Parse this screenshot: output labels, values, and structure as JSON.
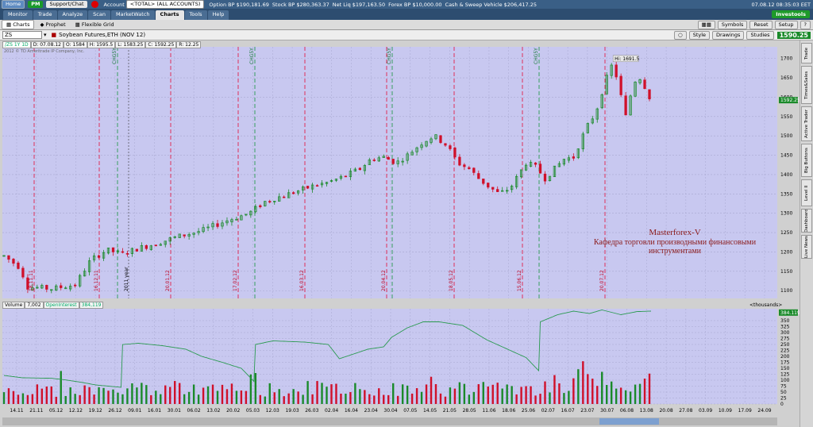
{
  "topbar": {
    "home": "Home",
    "pm": "PM",
    "support": "Support/Chat",
    "account_label": "Account",
    "account_value": "<TOTAL> (ALL ACCOUNTS)",
    "stats": [
      {
        "k": "Option BP",
        "v": "$190,181.69"
      },
      {
        "k": "Stock BP",
        "v": "$280,363.37"
      },
      {
        "k": "Net Liq",
        "v": "$197,163.50"
      },
      {
        "k": "Forex BP",
        "v": "$10,000.00"
      },
      {
        "k": "Cash & Sweep Vehicle",
        "v": "$206,417.25"
      }
    ],
    "time": "07.08.12 08:35:03 EET"
  },
  "nav": {
    "tabs": [
      "Monitor",
      "Trade",
      "Analyze",
      "Scan",
      "MarketWatch",
      "Charts",
      "Tools",
      "Help"
    ],
    "active": "Charts",
    "logo": "Investools"
  },
  "subtabs": {
    "items": [
      "Charts",
      "Prophet",
      "Flexible Grid"
    ],
    "right": [
      "Symbols",
      "Reset",
      "Setup"
    ]
  },
  "symbar": {
    "symbol": "ZS",
    "description": "Soybean Futures,ETH (NOV 12)",
    "last": "1590.25",
    "buttons": [
      "Style",
      "Drawings",
      "Studies"
    ]
  },
  "price_panel": {
    "info": [
      "/ZS 1Y 1D",
      "D: 07.08.12",
      "O: 1584",
      "H: 1595.5",
      "L: 1583.25",
      "C: 1592.25",
      "R: 12.25"
    ],
    "copyright": "2012 © TD Ameritrade IP Company, Inc.",
    "high_label": "Hi: 1691.5",
    "last_label": "1592.25"
  },
  "volume_panel": {
    "labels": [
      "Volume",
      "7,002",
      "OpenInterest",
      "384,119"
    ],
    "units": "<thousands>",
    "oi_label": "384.119"
  },
  "watermark": {
    "line1": "Masterforex-V",
    "line2": "Кафедра торговли производными финансовыми",
    "line3": "инструментами"
  },
  "right_tabs": [
    "Trade",
    "Times&Sales",
    "Active Trader",
    "Big Buttons",
    "Level II",
    "Dashboard",
    "Live News"
  ],
  "chart_data": {
    "type": "candlestick",
    "price_axis": {
      "min": 1080,
      "max": 1730,
      "ticks": [
        1100,
        1150,
        1200,
        1250,
        1300,
        1350,
        1400,
        1450,
        1500,
        1550,
        1600,
        1650,
        1700
      ]
    },
    "volume_axis": {
      "min": 0,
      "max": 400,
      "ticks": [
        0,
        25,
        50,
        75,
        100,
        125,
        150,
        175,
        200,
        225,
        250,
        275,
        300,
        325,
        350
      ]
    },
    "x_labels": [
      "14.11",
      "21.11",
      "05.12",
      "12.12",
      "19.12",
      "26.12",
      "09.01",
      "16.01",
      "30.01",
      "06.02",
      "13.02",
      "20.02",
      "05.03",
      "12.03",
      "19.03",
      "26.03",
      "02.04",
      "16.04",
      "23.04",
      "30.04",
      "07.05",
      "14.05",
      "21.05",
      "28.05",
      "11.06",
      "18.06",
      "25.06",
      "02.07",
      "16.07",
      "23.07",
      "30.07",
      "06.08",
      "13.08",
      "20.08",
      "27.08",
      "03.09",
      "10.09",
      "17.09",
      "24.09"
    ],
    "red_markers": [
      "18.11.11",
      "16.12.11",
      "20.01.12",
      "17.02.12",
      "16.03.12",
      "20.04.12",
      "18.05.12",
      "15.06.12",
      "20.07.12"
    ],
    "green_markers": [
      "CHG5Y",
      "CHG5Y",
      "CHG5Y",
      "CHG5Y"
    ],
    "year_marker": "2011 year",
    "anchors": [
      [
        0,
        1190
      ],
      [
        10,
        1160
      ],
      [
        15,
        1110
      ],
      [
        30,
        1105
      ],
      [
        45,
        1115
      ],
      [
        55,
        1180
      ],
      [
        65,
        1205
      ],
      [
        75,
        1195
      ],
      [
        85,
        1210
      ],
      [
        95,
        1220
      ],
      [
        110,
        1240
      ],
      [
        125,
        1255
      ],
      [
        140,
        1280
      ],
      [
        155,
        1300
      ],
      [
        165,
        1330
      ],
      [
        180,
        1350
      ],
      [
        195,
        1370
      ],
      [
        205,
        1380
      ],
      [
        215,
        1395
      ],
      [
        225,
        1415
      ],
      [
        232,
        1440
      ],
      [
        240,
        1445
      ],
      [
        248,
        1430
      ],
      [
        255,
        1450
      ],
      [
        265,
        1485
      ],
      [
        272,
        1500
      ],
      [
        280,
        1475
      ],
      [
        287,
        1430
      ],
      [
        294,
        1415
      ],
      [
        300,
        1390
      ],
      [
        306,
        1370
      ],
      [
        313,
        1350
      ],
      [
        320,
        1365
      ],
      [
        330,
        1430
      ],
      [
        336,
        1420
      ],
      [
        342,
        1390
      ],
      [
        348,
        1415
      ],
      [
        354,
        1440
      ],
      [
        360,
        1445
      ],
      [
        368,
        1520
      ],
      [
        374,
        1560
      ],
      [
        380,
        1640
      ],
      [
        385,
        1690
      ],
      [
        389,
        1620
      ],
      [
        393,
        1550
      ],
      [
        398,
        1640
      ],
      [
        402,
        1650
      ],
      [
        406,
        1620
      ],
      [
        409,
        1590
      ]
    ],
    "oi_anchors": [
      [
        0,
        120
      ],
      [
        12,
        110
      ],
      [
        30,
        108
      ],
      [
        38,
        102
      ],
      [
        50,
        90
      ],
      [
        58,
        80
      ],
      [
        66,
        75
      ],
      [
        74,
        70
      ],
      [
        75,
        250
      ],
      [
        85,
        255
      ],
      [
        100,
        245
      ],
      [
        115,
        230
      ],
      [
        125,
        200
      ],
      [
        138,
        175
      ],
      [
        150,
        150
      ],
      [
        158,
        95
      ],
      [
        159,
        250
      ],
      [
        170,
        265
      ],
      [
        190,
        260
      ],
      [
        205,
        250
      ],
      [
        212,
        190
      ],
      [
        230,
        230
      ],
      [
        240,
        240
      ],
      [
        245,
        280
      ],
      [
        255,
        320
      ],
      [
        265,
        345
      ],
      [
        275,
        345
      ],
      [
        290,
        330
      ],
      [
        305,
        270
      ],
      [
        320,
        225
      ],
      [
        330,
        195
      ],
      [
        338,
        140
      ],
      [
        339,
        345
      ],
      [
        350,
        375
      ],
      [
        360,
        390
      ],
      [
        370,
        380
      ],
      [
        378,
        395
      ],
      [
        390,
        375
      ],
      [
        400,
        388
      ],
      [
        409,
        390
      ]
    ],
    "vol_max": 400
  }
}
